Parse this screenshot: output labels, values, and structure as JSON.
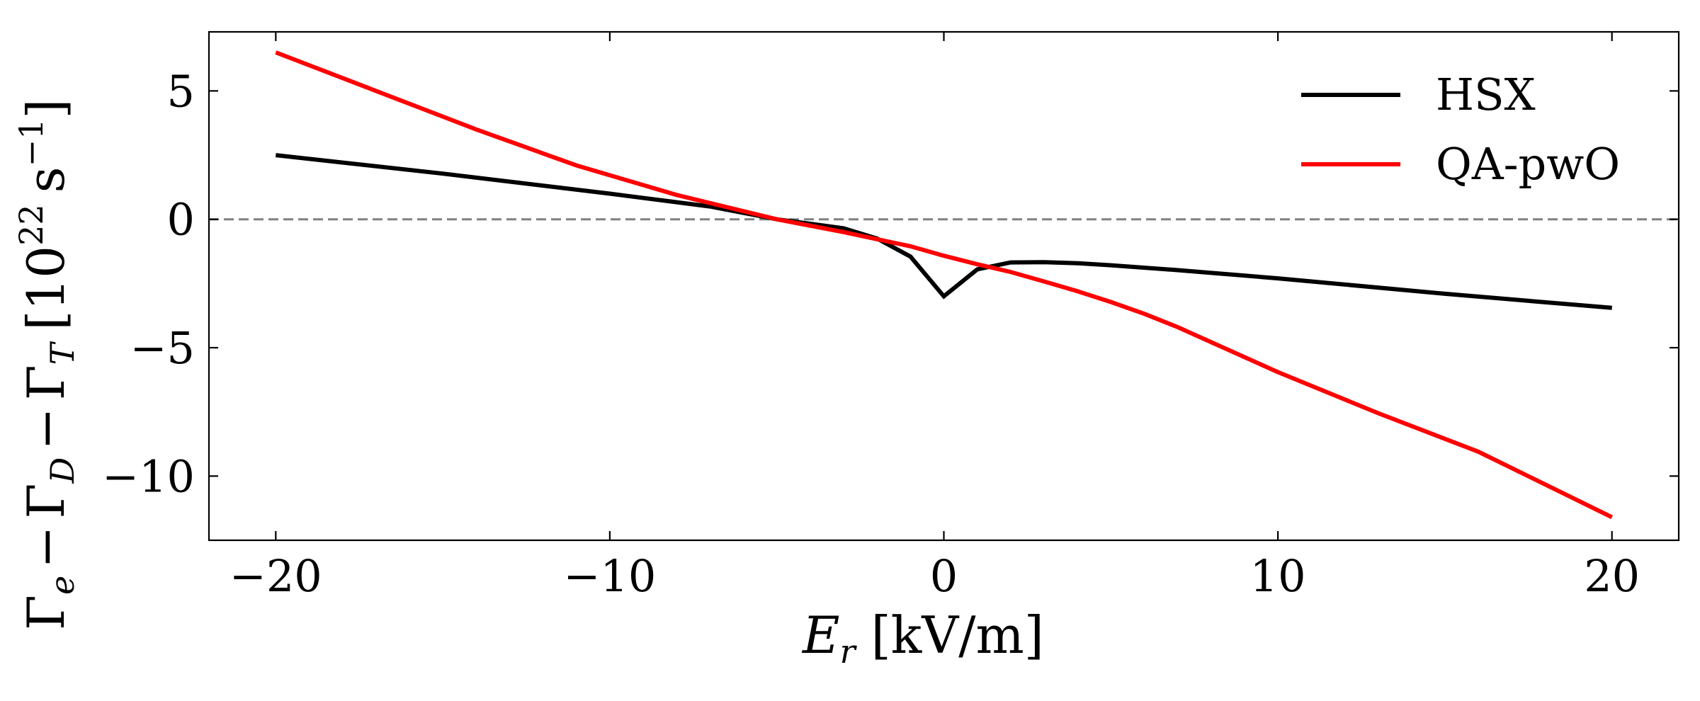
{
  "chart_data": {
    "type": "line",
    "xlabel": "E_r [kV/m]",
    "xlabel_parts": {
      "symbol": "E",
      "subscript": "r",
      "unit": "[kV/m]"
    },
    "ylabel": "Γ_e − Γ_D − Γ_T [10^22 s^-1]",
    "ylabel_parts": {
      "g1": "Γ",
      "s1": "e",
      "minus1": "−",
      "g2": "Γ",
      "s2": "D",
      "minus2": "−",
      "g3": "Γ",
      "s3": "T",
      "unit_open": "[10",
      "exp": "22",
      "unit_s": "s",
      "exp2": "−1",
      "unit_close": "]"
    },
    "xlim": [
      -22,
      22
    ],
    "ylim": [
      -12.5,
      7.3
    ],
    "x_ticks": [
      -20,
      -10,
      0,
      10,
      20
    ],
    "x_tick_labels": [
      "−20",
      "−10",
      "0",
      "10",
      "20"
    ],
    "y_ticks": [
      5,
      0,
      -5,
      -10
    ],
    "y_tick_labels": [
      "5",
      "0",
      "−5",
      "−10"
    ],
    "reference_line": {
      "y": 0,
      "style": "dashed",
      "color": "#808080"
    },
    "legend_position": "top-right",
    "series": [
      {
        "name": "HSX",
        "color": "#000000",
        "x": [
          -20,
          -15,
          -10,
          -7,
          -5,
          -3,
          -2,
          -1,
          0,
          1,
          2,
          3,
          4,
          5,
          7,
          10,
          15,
          20
        ],
        "y": [
          2.5,
          1.78,
          1.0,
          0.5,
          0.0,
          -0.35,
          -0.75,
          -1.45,
          -3.0,
          -1.95,
          -1.68,
          -1.67,
          -1.71,
          -1.79,
          -1.98,
          -2.3,
          -2.9,
          -3.45
        ]
      },
      {
        "name": "QA-pwO",
        "color": "#ff0000",
        "x": [
          -20,
          -17,
          -14,
          -11,
          -8,
          -5,
          -3,
          -1,
          0,
          1,
          2,
          3,
          4,
          5,
          6,
          7,
          10,
          13,
          16,
          20
        ],
        "y": [
          6.5,
          5.0,
          3.5,
          2.1,
          0.95,
          0.0,
          -0.5,
          -1.05,
          -1.42,
          -1.75,
          -2.05,
          -2.42,
          -2.8,
          -3.22,
          -3.68,
          -4.2,
          -5.95,
          -7.55,
          -9.05,
          -11.6
        ]
      }
    ]
  }
}
